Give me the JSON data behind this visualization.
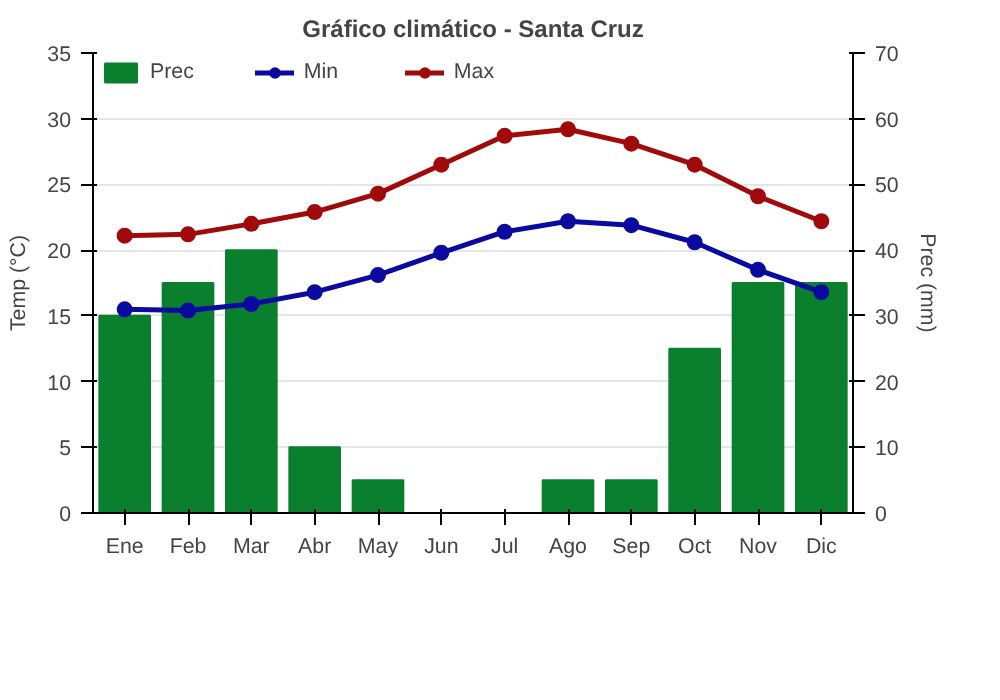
{
  "chart_data": {
    "type": "bar",
    "title": "Gráfico climático - Santa Cruz",
    "ylabel": "Temp (°C)",
    "y2label": "Prec (mm)",
    "categories": [
      "Ene",
      "Feb",
      "Mar",
      "Abr",
      "May",
      "Jun",
      "Jul",
      "Ago",
      "Sep",
      "Oct",
      "Nov",
      "Dic"
    ],
    "series": [
      {
        "name": "Prec",
        "axis": "y2",
        "color": "#0a7f2e",
        "values": [
          30,
          35,
          40,
          10,
          5,
          0,
          0,
          5,
          5,
          25,
          35,
          35
        ]
      },
      {
        "name": "Min",
        "type": "line",
        "color": "#0a0aa0",
        "values": [
          15.5,
          15.4,
          15.9,
          16.8,
          18.1,
          19.8,
          21.4,
          22.2,
          21.9,
          20.6,
          18.5,
          16.8
        ]
      },
      {
        "name": "Max",
        "type": "line",
        "color": "#a00a0a",
        "values": [
          21.1,
          21.2,
          22.0,
          22.9,
          24.3,
          26.5,
          28.7,
          29.2,
          28.1,
          26.5,
          24.1,
          22.2
        ]
      }
    ],
    "ylim": [
      0,
      35
    ],
    "yticks": [
      0,
      5,
      10,
      15,
      20,
      25,
      30,
      35
    ],
    "y2lim": [
      0,
      70
    ],
    "y2ticks": [
      0,
      10,
      20,
      30,
      40,
      50,
      60,
      70
    ],
    "grid": "y",
    "legend": "top left",
    "marker": "circle"
  }
}
